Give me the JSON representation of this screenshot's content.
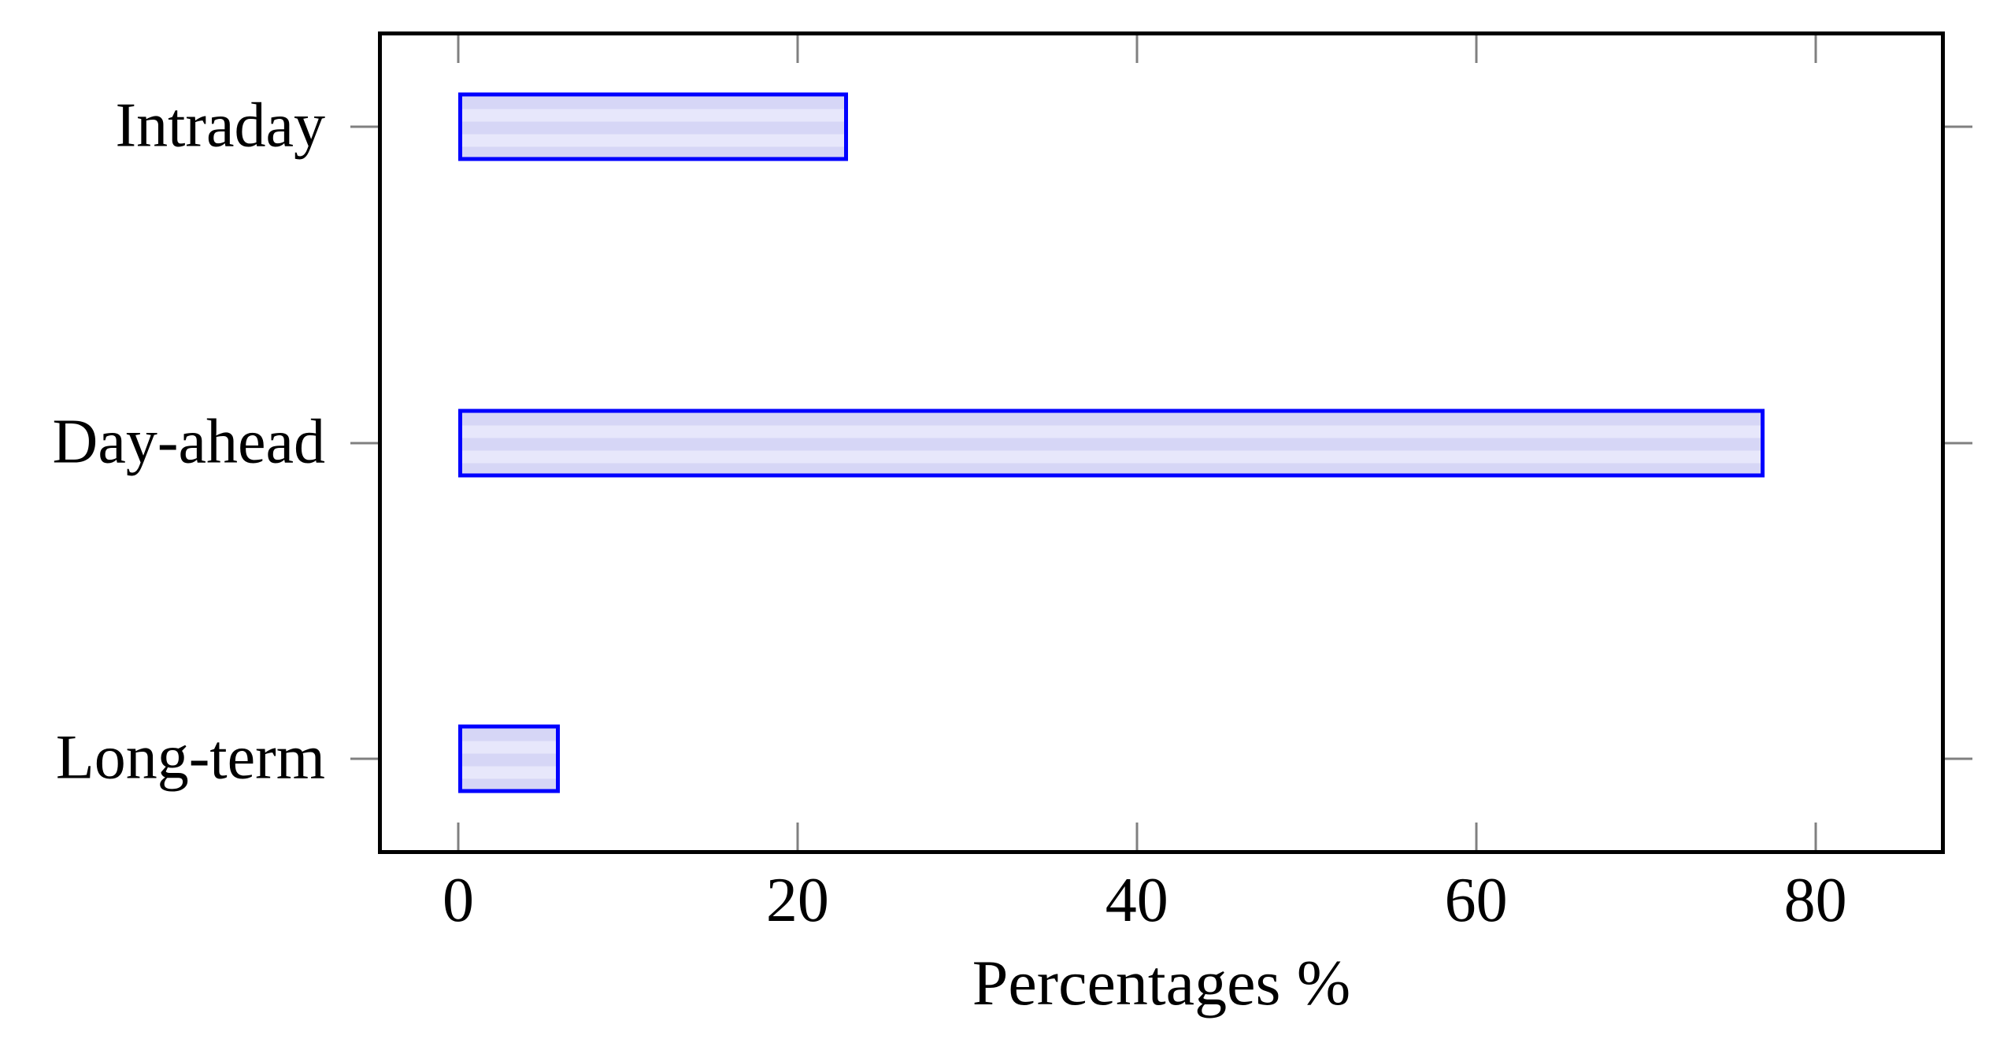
{
  "chart_data": {
    "type": "bar",
    "orientation": "horizontal",
    "title": "",
    "xlabel": "Percentages %",
    "ylabel": "",
    "categories": [
      "Intraday",
      "Day-ahead",
      "Long-term"
    ],
    "values": [
      23,
      77,
      6
    ],
    "x_ticks": [
      0,
      20,
      40,
      60,
      80
    ],
    "x_tick_labels": [
      "0",
      "20",
      "40",
      "60",
      "80"
    ],
    "xlim": [
      -4.5,
      87.4
    ],
    "grid": false,
    "legend": null,
    "colors": {
      "bar_border": "#0000ff",
      "bar_fill_light": "#e7e7fb",
      "bar_fill_dark": "#d6d6f6",
      "axis": "#000000",
      "tick": "#808080",
      "text": "#000000",
      "background": "#ffffff"
    }
  }
}
